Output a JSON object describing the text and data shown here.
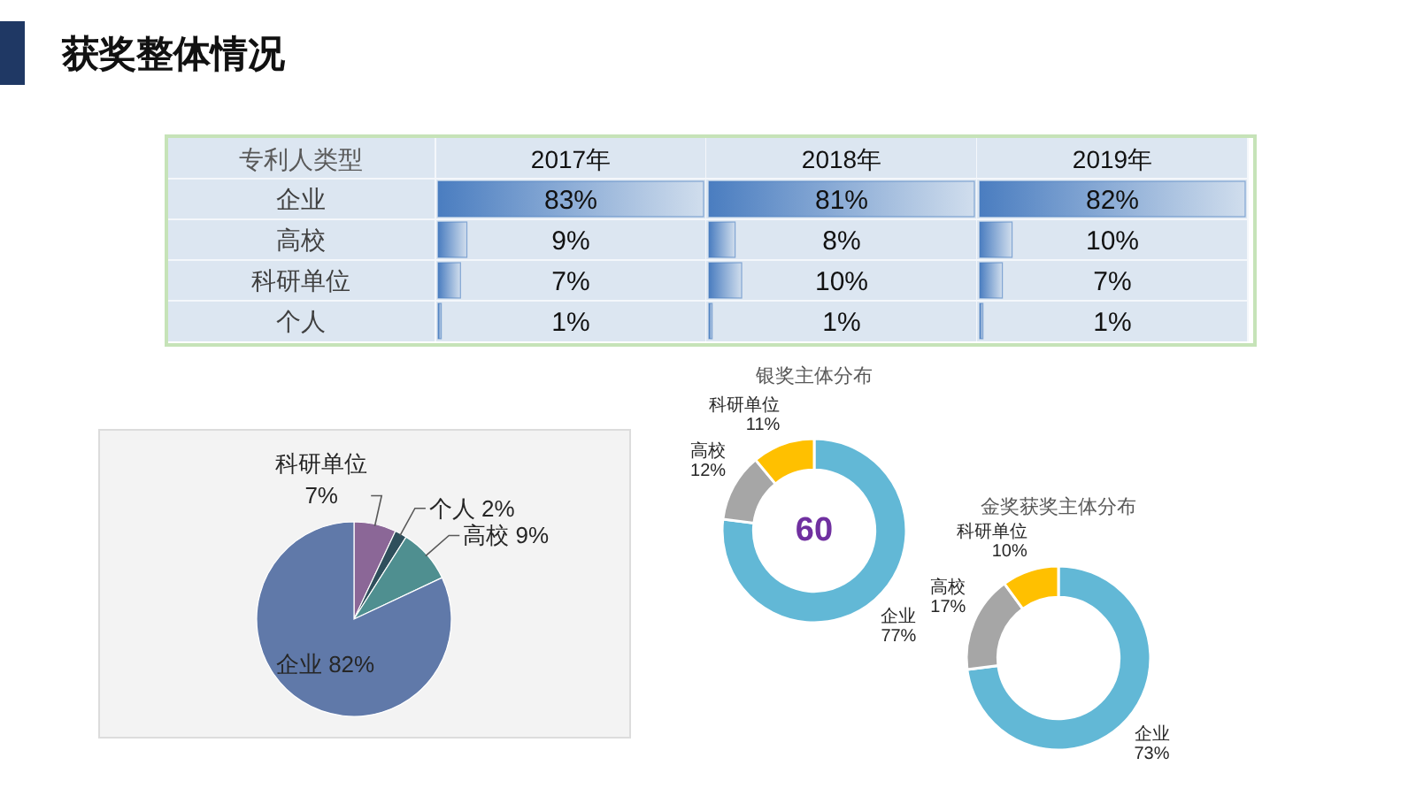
{
  "chart_data": [
    {
      "type": "other",
      "title": "获奖整体情况"
    },
    {
      "type": "bar",
      "orientation": "horizontal",
      "title": "2017年",
      "ylabel": "专利人类型",
      "categories": [
        "企业",
        "高校",
        "科研单位",
        "个人"
      ],
      "color": "#4a7dc0",
      "values": [
        83,
        9,
        7,
        1
      ],
      "value_labels": [
        "83%",
        "9%",
        "7%",
        "1%"
      ],
      "tick_labels": "y"
    },
    {
      "type": "bar",
      "orientation": "horizontal",
      "title": "2018年",
      "categories": [
        null,
        null,
        null,
        null
      ],
      "color": "#4a7dc0",
      "values": [
        81,
        8,
        10,
        1
      ],
      "value_labels": [
        "81%",
        "8%",
        "10%",
        "1%"
      ],
      "tick_labels": false
    },
    {
      "type": "bar",
      "orientation": "horizontal",
      "title": "2019年",
      "categories": [
        null,
        null,
        null,
        null
      ],
      "color": "#4a7dc0",
      "values": [
        82,
        10,
        7,
        1
      ],
      "value_labels": [
        "82%",
        "10%",
        "7%",
        "1%"
      ],
      "tick_labels": false
    },
    {
      "type": "pie",
      "categories": [
        "科研单位",
        "个人",
        "高校",
        "企业"
      ],
      "values": [
        7,
        2,
        9,
        82
      ],
      "colors": [
        "#8b6797",
        "#2f4f5c",
        "#4f8f90",
        "#6079a9"
      ],
      "value_labels": [
        "7%",
        "2%",
        "9%",
        "82%"
      ]
    },
    {
      "type": "donut",
      "title": "银奖主体分布",
      "categories": [
        "企业",
        "高校",
        "科研单位"
      ],
      "values": [
        77,
        12,
        11
      ],
      "colors": [
        "#62b8d6",
        "#a6a6a6",
        "#ffc000"
      ],
      "value_labels": [
        "77%",
        "12%",
        "11%"
      ],
      "annotations": [
        "60"
      ]
    },
    {
      "type": "donut",
      "title": "金奖获奖主体分布",
      "categories": [
        "企业",
        "高校",
        "科研单位"
      ],
      "values": [
        73,
        17,
        10
      ],
      "colors": [
        "#62b8d6",
        "#a6a6a6",
        "#ffc000"
      ],
      "value_labels": [
        "73%",
        "17%",
        "10%"
      ]
    }
  ]
}
